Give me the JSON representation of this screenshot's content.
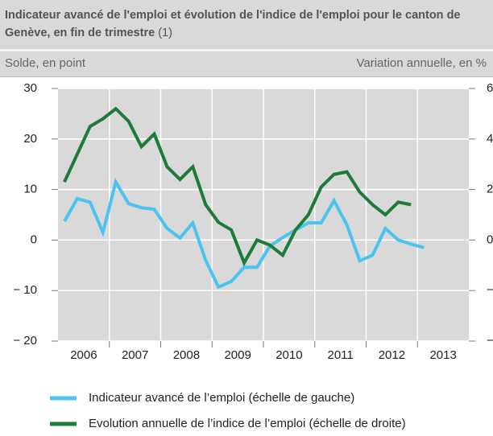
{
  "chart_data": {
    "type": "line",
    "title": "Indicateur avancé de l'emploi et évolution de l'indice de l'emploi pour le canton de Genève, en fin de trimestre",
    "title_note": "(1)",
    "y_label": "Solde, en point",
    "y2_label": "Variation annuelle, en %",
    "categories": [
      "2006",
      "2007",
      "2008",
      "2009",
      "2010",
      "2011",
      "2012",
      "2013"
    ],
    "xlim": [
      2006,
      2014
    ],
    "xticks": [
      2007,
      2008,
      2009,
      2010,
      2011,
      2012,
      2013
    ],
    "ylim": [
      -20,
      30
    ],
    "yticks": [
      30,
      20,
      10,
      0,
      {
        "value": -10,
        "label": "− 10"
      },
      {
        "value": -20,
        "label": "− 20"
      }
    ],
    "y2lim": [
      -4,
      6
    ],
    "y2ticks": [
      6,
      4,
      2,
      0,
      {
        "value": -2,
        "label": "− 2"
      },
      {
        "value": -4,
        "label": "− 4"
      }
    ],
    "grid": true,
    "series": [
      {
        "name": "Indicateur avancé de l’emploi (échelle de gauche)",
        "color": "#4cc4ef",
        "x": [
          2006.125,
          2006.375,
          2006.625,
          2006.875,
          2007.125,
          2007.375,
          2007.625,
          2007.875,
          2008.125,
          2008.375,
          2008.625,
          2008.875,
          2009.125,
          2009.375,
          2009.625,
          2009.875,
          2010.125,
          2010.375,
          2010.625,
          2010.875,
          2011.125,
          2011.375,
          2011.625,
          2011.875,
          2012.125,
          2012.375,
          2012.625,
          2012.875,
          2013.125
        ],
        "values": [
          3.7,
          8.2,
          7.5,
          1.5,
          11.5,
          7.2,
          6.4,
          6.1,
          2.3,
          0.4,
          3.4,
          -4,
          -9.3,
          -8.2,
          -5.4,
          -5.4,
          -1.2,
          0.5,
          2.0,
          3.4,
          3.4,
          7.8,
          3.0,
          -4.1,
          -3,
          2.3,
          0,
          -0.8,
          -1.5
        ]
      },
      {
        "name": "Evolution annuelle de l’indice de l’emploi (échelle de droite)",
        "color": "#1e7b3a",
        "axis": "y2",
        "x": [
          2006.125,
          2006.375,
          2006.625,
          2006.875,
          2007.125,
          2007.375,
          2007.625,
          2007.875,
          2008.125,
          2008.375,
          2008.625,
          2008.875,
          2009.125,
          2009.375,
          2009.625,
          2009.875,
          2010.125,
          2010.375,
          2010.625,
          2010.875,
          2011.125,
          2011.375,
          2011.625,
          2011.875,
          2012.125,
          2012.375,
          2012.625,
          2012.875
        ],
        "values": [
          2.3,
          3.4,
          4.5,
          4.8,
          5.2,
          4.7,
          3.7,
          4.2,
          2.9,
          2.4,
          2.9,
          1.4,
          0.7,
          0.4,
          -0.9,
          0,
          -0.2,
          -0.6,
          0.4,
          1.0,
          2.1,
          2.6,
          2.7,
          1.9,
          1.4,
          1.0,
          1.5,
          1.4
        ]
      }
    ]
  }
}
